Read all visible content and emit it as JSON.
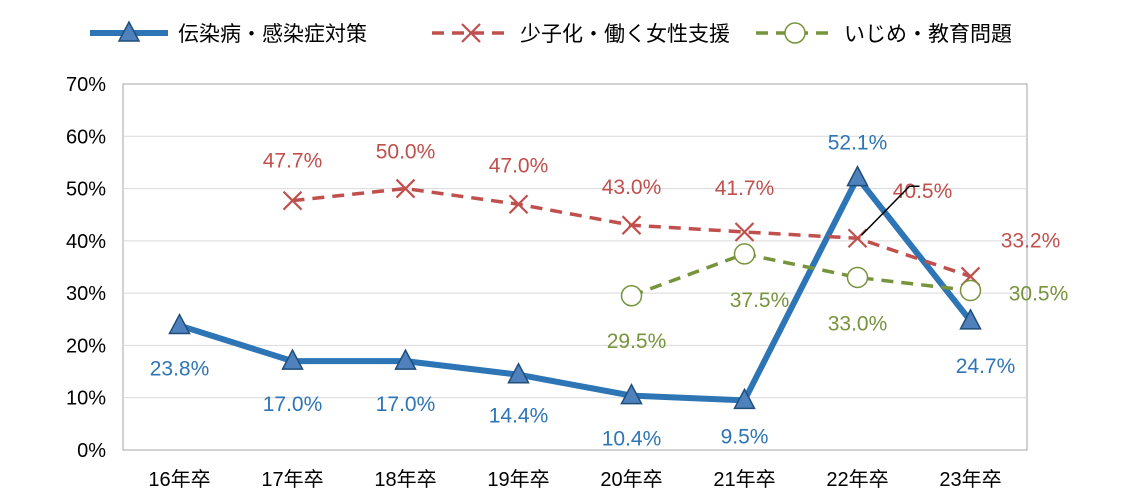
{
  "chart_data": {
    "type": "line",
    "categories": [
      "16年卒",
      "17年卒",
      "18年卒",
      "19年卒",
      "20年卒",
      "21年卒",
      "22年卒",
      "23年卒"
    ],
    "y_ticks": [
      "0%",
      "10%",
      "20%",
      "30%",
      "40%",
      "50%",
      "60%",
      "70%"
    ],
    "ylim": [
      0,
      70
    ],
    "grid": true,
    "legend_position": "top",
    "series": [
      {
        "name": "伝染病・感染症対策",
        "color": "#2E75B6",
        "line_style": "solid",
        "marker": "triangle",
        "values": [
          23.8,
          17.0,
          17.0,
          14.4,
          10.4,
          9.5,
          52.1,
          24.7
        ],
        "labels": [
          "23.8%",
          "17.0%",
          "17.0%",
          "14.4%",
          "10.4%",
          "9.5%",
          "52.1%",
          "24.7%"
        ]
      },
      {
        "name": "少子化・働く女性支援",
        "color": "#C0504D",
        "line_style": "dashed",
        "marker": "x",
        "values": [
          null,
          47.7,
          50.0,
          47.0,
          43.0,
          41.7,
          40.5,
          33.2
        ],
        "labels": [
          "",
          "47.7%",
          "50.0%",
          "47.0%",
          "43.0%",
          "41.7%",
          "40.5%",
          "33.2%"
        ]
      },
      {
        "name": "いじめ・教育問題",
        "color": "#77933C",
        "line_style": "dashed",
        "marker": "circle",
        "values": [
          null,
          null,
          null,
          null,
          29.5,
          37.5,
          33.0,
          30.5
        ],
        "labels": [
          "",
          "",
          "",
          "",
          "29.5%",
          "37.5%",
          "33.0%",
          "30.5%"
        ]
      }
    ]
  }
}
